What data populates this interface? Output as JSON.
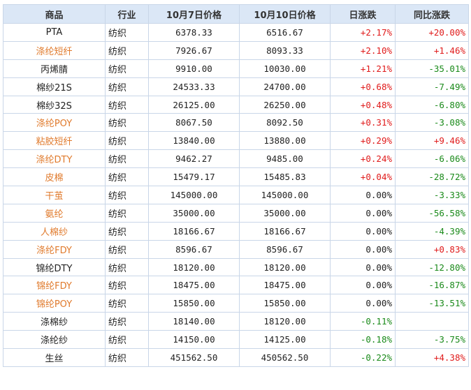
{
  "headers": [
    "商品",
    "行业",
    "10月7日价格",
    "10月10日价格",
    "日涨跌",
    "同比涨跌"
  ],
  "colors": {
    "link_orange": "#e07a2c",
    "up_red": "#e01b1b",
    "down_green": "#1a8a1a",
    "header_bg": "#dbe7f6",
    "border": "#c9d6e8"
  },
  "rows": [
    {
      "name": "PTA",
      "name_style": "black",
      "industry": "纺织",
      "p1": "6378.33",
      "p2": "6516.67",
      "day": "+2.17%",
      "day_style": "red",
      "yoy": "+20.00%",
      "yoy_style": "red"
    },
    {
      "name": "涤纶短纤",
      "name_style": "orange",
      "industry": "纺织",
      "p1": "7926.67",
      "p2": "8093.33",
      "day": "+2.10%",
      "day_style": "red",
      "yoy": "+1.46%",
      "yoy_style": "red"
    },
    {
      "name": "丙烯腈",
      "name_style": "black",
      "industry": "纺织",
      "p1": "9910.00",
      "p2": "10030.00",
      "day": "+1.21%",
      "day_style": "red",
      "yoy": "-35.01%",
      "yoy_style": "green"
    },
    {
      "name": "棉纱21S",
      "name_style": "black",
      "industry": "纺织",
      "p1": "24533.33",
      "p2": "24700.00",
      "day": "+0.68%",
      "day_style": "red",
      "yoy": "-7.49%",
      "yoy_style": "green"
    },
    {
      "name": "棉纱32S",
      "name_style": "black",
      "industry": "纺织",
      "p1": "26125.00",
      "p2": "26250.00",
      "day": "+0.48%",
      "day_style": "red",
      "yoy": "-6.80%",
      "yoy_style": "green"
    },
    {
      "name": "涤纶POY",
      "name_style": "orange",
      "industry": "纺织",
      "p1": "8067.50",
      "p2": "8092.50",
      "day": "+0.31%",
      "day_style": "red",
      "yoy": "-3.08%",
      "yoy_style": "green"
    },
    {
      "name": "粘胶短纤",
      "name_style": "orange",
      "industry": "纺织",
      "p1": "13840.00",
      "p2": "13880.00",
      "day": "+0.29%",
      "day_style": "red",
      "yoy": "+9.46%",
      "yoy_style": "red"
    },
    {
      "name": "涤纶DTY",
      "name_style": "orange",
      "industry": "纺织",
      "p1": "9462.27",
      "p2": "9485.00",
      "day": "+0.24%",
      "day_style": "red",
      "yoy": "-6.06%",
      "yoy_style": "green"
    },
    {
      "name": "皮棉",
      "name_style": "orange",
      "industry": "纺织",
      "p1": "15479.17",
      "p2": "15485.83",
      "day": "+0.04%",
      "day_style": "red",
      "yoy": "-28.72%",
      "yoy_style": "green"
    },
    {
      "name": "干茧",
      "name_style": "orange",
      "industry": "纺织",
      "p1": "145000.00",
      "p2": "145000.00",
      "day": "0.00%",
      "day_style": "black",
      "yoy": "-3.33%",
      "yoy_style": "green"
    },
    {
      "name": "氨纶",
      "name_style": "orange",
      "industry": "纺织",
      "p1": "35000.00",
      "p2": "35000.00",
      "day": "0.00%",
      "day_style": "black",
      "yoy": "-56.58%",
      "yoy_style": "green"
    },
    {
      "name": "人棉纱",
      "name_style": "orange",
      "industry": "纺织",
      "p1": "18166.67",
      "p2": "18166.67",
      "day": "0.00%",
      "day_style": "black",
      "yoy": "-4.39%",
      "yoy_style": "green"
    },
    {
      "name": "涤纶FDY",
      "name_style": "orange",
      "industry": "纺织",
      "p1": "8596.67",
      "p2": "8596.67",
      "day": "0.00%",
      "day_style": "black",
      "yoy": "+0.83%",
      "yoy_style": "red"
    },
    {
      "name": "锦纶DTY",
      "name_style": "black",
      "industry": "纺织",
      "p1": "18120.00",
      "p2": "18120.00",
      "day": "0.00%",
      "day_style": "black",
      "yoy": "-12.80%",
      "yoy_style": "green"
    },
    {
      "name": "锦纶FDY",
      "name_style": "orange",
      "industry": "纺织",
      "p1": "18475.00",
      "p2": "18475.00",
      "day": "0.00%",
      "day_style": "black",
      "yoy": "-16.87%",
      "yoy_style": "green"
    },
    {
      "name": "锦纶POY",
      "name_style": "orange",
      "industry": "纺织",
      "p1": "15850.00",
      "p2": "15850.00",
      "day": "0.00%",
      "day_style": "black",
      "yoy": "-13.51%",
      "yoy_style": "green"
    },
    {
      "name": "涤棉纱",
      "name_style": "black",
      "industry": "纺织",
      "p1": "18140.00",
      "p2": "18120.00",
      "day": "-0.11%",
      "day_style": "green",
      "yoy": "",
      "yoy_style": "black"
    },
    {
      "name": "涤纶纱",
      "name_style": "black",
      "industry": "纺织",
      "p1": "14150.00",
      "p2": "14125.00",
      "day": "-0.18%",
      "day_style": "green",
      "yoy": "-3.75%",
      "yoy_style": "green"
    },
    {
      "name": "生丝",
      "name_style": "black",
      "industry": "纺织",
      "p1": "451562.50",
      "p2": "450562.50",
      "day": "-0.22%",
      "day_style": "green",
      "yoy": "+4.38%",
      "yoy_style": "red"
    }
  ]
}
